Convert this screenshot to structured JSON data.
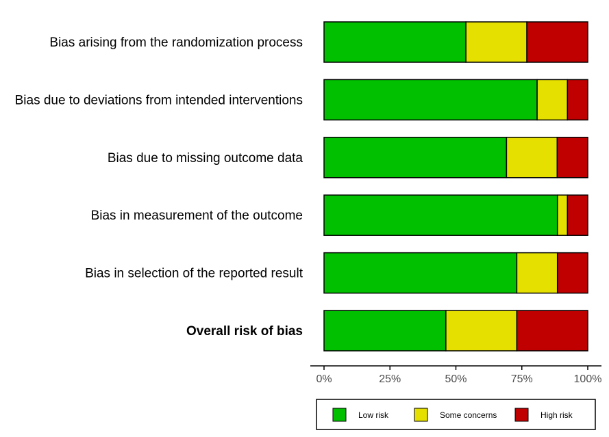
{
  "chart_data": {
    "type": "bar",
    "orientation": "horizontal",
    "stacked": true,
    "categories": [
      "Bias arising from the randomization process",
      "Bias due to deviations from intended interventions",
      "Bias due to missing outcome data",
      "Bias in measurement of the outcome",
      "Bias in selection of the reported result",
      "Overall risk of bias"
    ],
    "bold_categories": [
      "Overall risk of bias"
    ],
    "series": [
      {
        "name": "Low risk",
        "color": "#00c000",
        "values": [
          53.8,
          80.8,
          69.2,
          88.5,
          73.1,
          46.2
        ]
      },
      {
        "name": "Some concerns",
        "color": "#e5e000",
        "values": [
          23.1,
          11.5,
          19.2,
          3.8,
          15.4,
          26.9
        ]
      },
      {
        "name": "High risk",
        "color": "#c00000",
        "values": [
          23.1,
          7.7,
          11.6,
          7.7,
          11.5,
          26.9
        ]
      }
    ],
    "xlim": [
      0,
      100
    ],
    "xticks": [
      "0%",
      "25%",
      "50%",
      "75%",
      "100%"
    ],
    "title": "",
    "xlabel": "",
    "ylabel": "",
    "grid": false,
    "legend_position": "bottom"
  }
}
